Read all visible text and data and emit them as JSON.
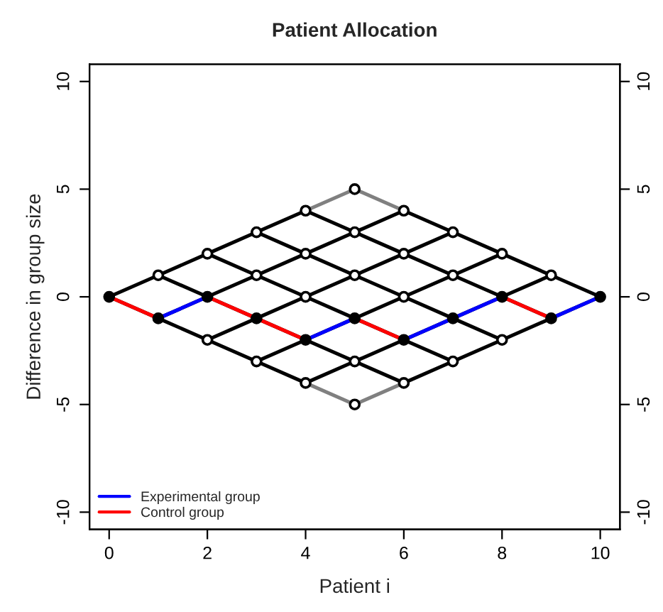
{
  "chart_data": {
    "type": "line",
    "title": "Patient Allocation",
    "xlabel": "Patient i",
    "ylabel": "Difference in group size",
    "xlim": [
      -0.4,
      10.4
    ],
    "xticks": [
      0,
      2,
      4,
      6,
      8,
      10
    ],
    "ylim": [
      -10.8,
      10.8
    ],
    "yticks": [
      -10,
      -5,
      0,
      5,
      10
    ],
    "y2lim": [
      -10.8,
      10.8
    ],
    "y2ticks": [
      -10,
      -5,
      0,
      5,
      10
    ],
    "grid": false,
    "legend": "bottom left",
    "marker": "none",
    "line_style": "solid",
    "series": [
      {
        "color": "#000000",
        "x": [
          0,
          1,
          2,
          3,
          4
        ],
        "values": [
          0,
          1,
          2,
          3,
          4
        ]
      },
      {
        "color": "#000000",
        "x": [
          1,
          2,
          3,
          4,
          5,
          6
        ],
        "values": [
          -1,
          0,
          1,
          2,
          3,
          4
        ]
      },
      {
        "color": "#000000",
        "x": [
          2,
          3,
          4,
          5,
          6,
          7
        ],
        "values": [
          -2,
          -1,
          0,
          1,
          2,
          3
        ]
      },
      {
        "color": "#000000",
        "x": [
          3,
          4,
          5,
          6,
          7,
          8
        ],
        "values": [
          -3,
          -2,
          -1,
          0,
          1,
          2
        ]
      },
      {
        "color": "#000000",
        "x": [
          4,
          5,
          6,
          7,
          8,
          9
        ],
        "values": [
          -4,
          -3,
          -2,
          -1,
          0,
          1
        ]
      },
      {
        "color": "#000000",
        "x": [
          6,
          7,
          8,
          9,
          10
        ],
        "values": [
          -4,
          -3,
          -2,
          -1,
          0
        ]
      },
      {
        "color": "#000000",
        "x": [
          0,
          1,
          2,
          3,
          4
        ],
        "values": [
          0,
          -1,
          -2,
          -3,
          -4
        ]
      },
      {
        "color": "#000000",
        "x": [
          1,
          2,
          3,
          4,
          5,
          6
        ],
        "values": [
          1,
          0,
          -1,
          -2,
          -3,
          -4
        ]
      },
      {
        "color": "#000000",
        "x": [
          2,
          3,
          4,
          5,
          6,
          7
        ],
        "values": [
          2,
          1,
          0,
          -1,
          -2,
          -3
        ]
      },
      {
        "color": "#000000",
        "x": [
          3,
          4,
          5,
          6,
          7,
          8
        ],
        "values": [
          3,
          2,
          1,
          0,
          -1,
          -2
        ]
      },
      {
        "color": "#000000",
        "x": [
          4,
          5,
          6,
          7,
          8,
          9
        ],
        "values": [
          4,
          3,
          2,
          1,
          0,
          -1
        ]
      },
      {
        "color": "#000000",
        "x": [
          6,
          7,
          8,
          9,
          10
        ],
        "values": [
          4,
          3,
          2,
          1,
          0
        ]
      },
      {
        "color": "#808080",
        "x": [
          4,
          5,
          6
        ],
        "values": [
          4,
          5,
          4
        ]
      },
      {
        "color": "#808080",
        "x": [
          4,
          5,
          6
        ],
        "values": [
          -4,
          -5,
          -4
        ]
      },
      {
        "name": "Experimental group",
        "color": "#0000ff",
        "x": [
          1,
          2
        ],
        "values": [
          -1,
          0
        ]
      },
      {
        "color": "#0000ff",
        "x": [
          4,
          5
        ],
        "values": [
          -2,
          -1
        ]
      },
      {
        "color": "#0000ff",
        "x": [
          6,
          7,
          8
        ],
        "values": [
          -2,
          -1,
          0
        ]
      },
      {
        "color": "#0000ff",
        "x": [
          9,
          10
        ],
        "values": [
          -1,
          0
        ]
      },
      {
        "name": "Control group",
        "color": "#ff0000",
        "x": [
          0,
          1
        ],
        "values": [
          0,
          -1
        ]
      },
      {
        "color": "#ff0000",
        "x": [
          2,
          3,
          4
        ],
        "values": [
          0,
          -1,
          -2
        ]
      },
      {
        "color": "#ff0000",
        "x": [
          5,
          6
        ],
        "values": [
          -1,
          -2
        ]
      },
      {
        "color": "#ff0000",
        "x": [
          8,
          9
        ],
        "values": [
          0,
          -1
        ]
      },
      {
        "type": "scatter",
        "marker": "circle",
        "color": "#ffffff",
        "x": [
          1,
          2,
          2,
          3,
          3,
          3,
          4,
          4,
          4,
          4,
          5,
          5,
          5,
          5,
          5,
          6,
          6,
          6,
          6,
          7,
          7,
          7,
          8,
          8,
          9
        ],
        "values": [
          1,
          -2,
          2,
          -3,
          1,
          3,
          -4,
          0,
          2,
          4,
          -5,
          -3,
          1,
          3,
          5,
          -4,
          0,
          2,
          4,
          -3,
          1,
          3,
          -2,
          2,
          1
        ]
      },
      {
        "type": "scatter",
        "marker": "circle",
        "color": "#000000",
        "x": [
          0,
          1,
          2,
          3,
          4,
          5,
          6,
          7,
          8,
          9,
          10
        ],
        "values": [
          0,
          -1,
          0,
          -1,
          -2,
          -1,
          -2,
          -1,
          0,
          -1,
          0
        ]
      }
    ]
  }
}
